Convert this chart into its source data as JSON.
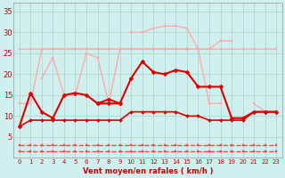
{
  "x": [
    0,
    1,
    2,
    3,
    4,
    5,
    6,
    7,
    8,
    9,
    10,
    11,
    12,
    13,
    14,
    15,
    16,
    17,
    18,
    19,
    20,
    21,
    22,
    23
  ],
  "lines": [
    {
      "y": [
        13,
        13,
        26,
        26,
        26,
        26,
        26,
        26,
        26,
        26,
        26,
        26,
        26,
        26,
        26,
        26,
        26,
        26,
        26,
        26,
        26,
        26,
        26,
        26
      ],
      "color": "#ffaaaa",
      "lw": 1.0,
      "marker": "s",
      "ms": 2.0
    },
    {
      "y": [
        null,
        null,
        null,
        null,
        null,
        null,
        null,
        null,
        null,
        null,
        30,
        30,
        31,
        31.5,
        31.5,
        31,
        26,
        null,
        null,
        null,
        null,
        null,
        null,
        null
      ],
      "color": "#ffaaaa",
      "lw": 1.0,
      "marker": "s",
      "ms": 2.0
    },
    {
      "y": [
        null,
        null,
        19,
        24,
        15,
        15,
        25,
        24,
        13,
        26,
        26,
        26,
        26,
        26,
        26,
        26,
        26,
        26,
        28,
        28,
        null,
        13,
        11,
        11
      ],
      "color": "#ffaaaa",
      "lw": 1.0,
      "marker": "s",
      "ms": 2.0
    },
    {
      "y": [
        26,
        26,
        26,
        26,
        26,
        26,
        26,
        26,
        26,
        26,
        26,
        26,
        26,
        26,
        26,
        26,
        26,
        13,
        13,
        null,
        null,
        null,
        null,
        null
      ],
      "color": "#ffaaaa",
      "lw": 1.0,
      "marker": "s",
      "ms": 2.0
    },
    {
      "y": [
        7.5,
        15.5,
        11,
        9.5,
        15,
        15.5,
        15,
        13,
        13,
        13,
        null,
        null,
        null,
        null,
        null,
        null,
        null,
        null,
        null,
        null,
        null,
        null,
        null,
        null
      ],
      "color": "#dd0000",
      "lw": 1.5,
      "marker": "D",
      "ms": 2.5
    },
    {
      "y": [
        null,
        null,
        null,
        null,
        null,
        null,
        null,
        13,
        14,
        13,
        19,
        23,
        20.5,
        20,
        21,
        20.5,
        17,
        17,
        17,
        9.5,
        9.5,
        11,
        11,
        11
      ],
      "color": "#dd0000",
      "lw": 1.5,
      "marker": "D",
      "ms": 2.5
    },
    {
      "y": [
        7.5,
        9,
        9,
        9,
        9,
        9,
        9,
        9,
        9,
        9,
        11,
        11,
        11,
        11,
        11,
        10,
        10,
        9,
        9,
        9,
        9,
        11,
        11,
        11
      ],
      "color": "#dd0000",
      "lw": 1.2,
      "marker": "D",
      "ms": 2.0
    },
    {
      "y": [
        1.5,
        1.5,
        1.5,
        1.5,
        1.5,
        1.5,
        1.5,
        1.5,
        1.5,
        1.5,
        1.5,
        1.5,
        1.5,
        1.5,
        1.5,
        1.5,
        1.5,
        1.5,
        1.5,
        1.5,
        1.5,
        1.5,
        1.5,
        1.5
      ],
      "color": "#ff4444",
      "lw": 1.0,
      "marker": "s",
      "ms": 1.5,
      "linestyle": "--"
    },
    {
      "y": [
        3,
        3,
        3,
        3,
        3,
        3,
        3,
        3,
        3,
        3,
        3,
        3,
        3,
        3,
        3,
        3,
        3,
        3,
        3,
        3,
        3,
        3,
        3,
        3
      ],
      "color": "#ff4444",
      "lw": 1.0,
      "marker": "s",
      "ms": 1.5,
      "linestyle": "--"
    }
  ],
  "xlabel": "Vent moyen/en rafales ( km/h )",
  "xlim_left": -0.5,
  "xlim_right": 23.5,
  "ylim": [
    0,
    37
  ],
  "yticks": [
    5,
    10,
    15,
    20,
    25,
    30,
    35
  ],
  "xticks": [
    0,
    1,
    2,
    3,
    4,
    5,
    6,
    7,
    8,
    9,
    10,
    11,
    12,
    13,
    14,
    15,
    16,
    17,
    18,
    19,
    20,
    21,
    22,
    23
  ],
  "bg_color": "#cff0ee",
  "grid_color": "#b0d8d0",
  "tick_color": "#cc0000",
  "label_color": "#cc0000"
}
